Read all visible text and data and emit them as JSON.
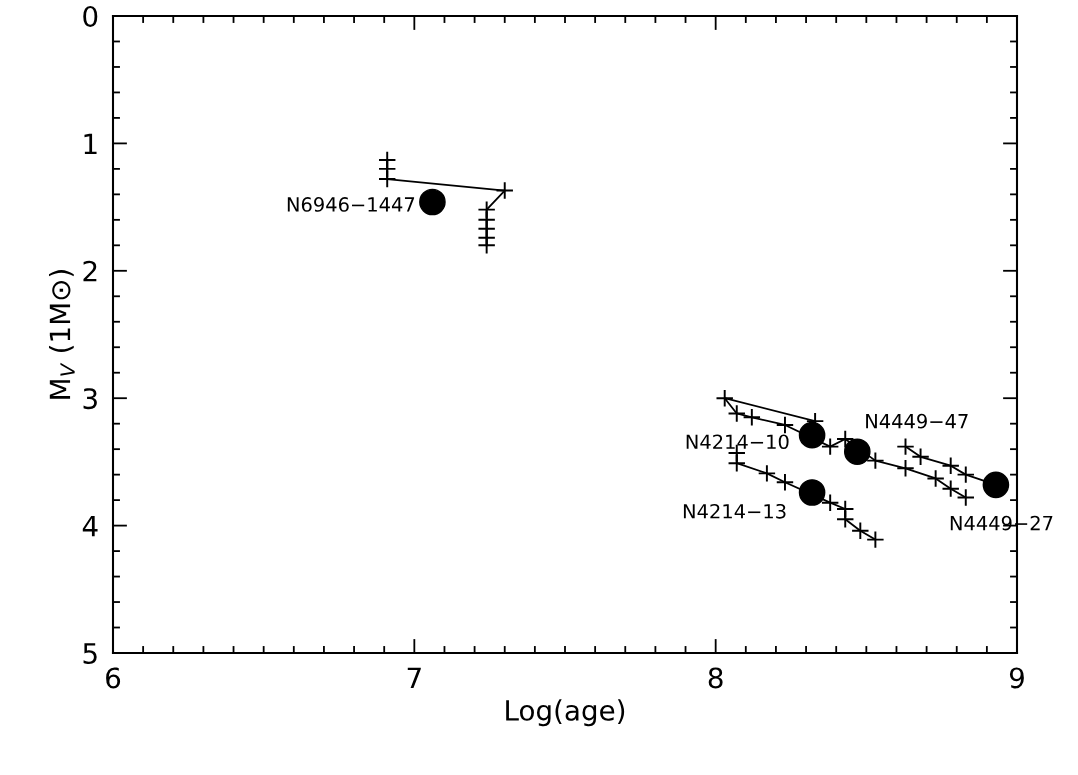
{
  "chart_data": {
    "type": "line",
    "xlabel": "Log(age)",
    "ylabel": "M$_{V}$ (1M⊙)",
    "xlim": [
      6,
      9
    ],
    "ylim": [
      5,
      0
    ],
    "xticks": [
      6,
      7,
      8,
      9
    ],
    "yticks": [
      0,
      1,
      2,
      3,
      4,
      5
    ],
    "grid": false,
    "legend": false,
    "series": [
      {
        "marker": "cross",
        "color": "#000000",
        "x": [
          6.91,
          6.91,
          6.91,
          7.3,
          7.24,
          7.24,
          7.24,
          7.24,
          7.24
        ],
        "values": [
          1.13,
          1.2,
          1.28,
          1.37,
          1.52,
          1.6,
          1.67,
          1.74,
          1.8
        ]
      },
      {
        "marker": "cross",
        "color": "#000000",
        "x": [
          8.33,
          8.03,
          8.07,
          8.12,
          8.23,
          8.38,
          8.43,
          8.53,
          8.63,
          8.73,
          8.78,
          8.83
        ],
        "values": [
          3.18,
          3.0,
          3.12,
          3.15,
          3.21,
          3.38,
          3.32,
          3.49,
          3.55,
          3.63,
          3.71,
          3.78
        ]
      },
      {
        "marker": "cross",
        "color": "#000000",
        "x": [
          8.63,
          8.68,
          8.78,
          8.83,
          8.93
        ],
        "values": [
          3.38,
          3.46,
          3.53,
          3.6,
          3.68
        ]
      },
      {
        "marker": "cross",
        "color": "#000000",
        "x": [
          8.07,
          8.07,
          8.17,
          8.23,
          8.38,
          8.43,
          8.43,
          8.48,
          8.53
        ],
        "values": [
          3.43,
          3.51,
          3.59,
          3.66,
          3.82,
          3.87,
          3.95,
          4.04,
          4.11
        ]
      },
      {
        "type": "scatter",
        "marker": "circle",
        "color": "#000000",
        "x": [
          7.06,
          8.32,
          8.47,
          8.32,
          8.93
        ],
        "values": [
          1.46,
          3.29,
          3.42,
          3.74,
          3.68
        ]
      }
    ],
    "annotations": [
      {
        "text": "N6946−1447",
        "x": 7.06,
        "y": 1.46
      },
      {
        "text": "N4214−10",
        "x": 8.32,
        "y": 3.29
      },
      {
        "text": "N4449−47",
        "x": 8.47,
        "y": 3.42
      },
      {
        "text": "N4214−13",
        "x": 8.32,
        "y": 3.74
      },
      {
        "text": "N4449−27",
        "x": 8.93,
        "y": 3.68
      }
    ]
  }
}
